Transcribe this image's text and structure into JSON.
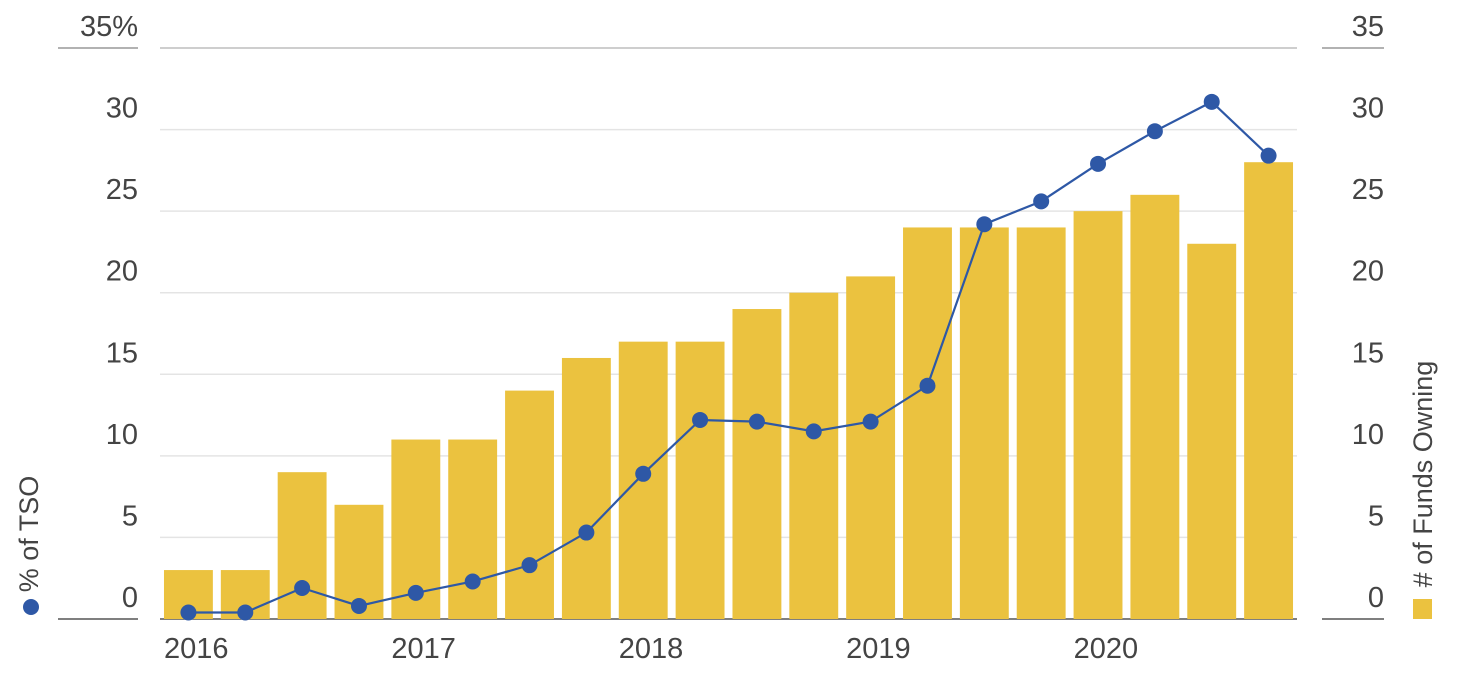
{
  "chart_data": {
    "type": "bar+line",
    "x_tick_labels": [
      "2016",
      "2017",
      "2018",
      "2019",
      "2020"
    ],
    "left_axis": {
      "title": "% of TSO",
      "tick_labels": [
        "0",
        "5",
        "10",
        "15",
        "20",
        "25",
        "30",
        "35%"
      ],
      "ticks": [
        0,
        5,
        10,
        15,
        20,
        25,
        30,
        35
      ],
      "ylim": [
        0,
        35
      ]
    },
    "right_axis": {
      "title": "# of Funds Owning",
      "tick_labels": [
        "0",
        "5",
        "10",
        "15",
        "20",
        "25",
        "30",
        "35"
      ],
      "ticks": [
        0,
        5,
        10,
        15,
        20,
        25,
        30,
        35
      ],
      "ylim": [
        0,
        35
      ]
    },
    "grid": "horizontal",
    "series": [
      {
        "name": "# of Funds Owning",
        "type": "bar",
        "axis": "right",
        "color": "#EBC23F",
        "values": [
          3,
          3,
          9,
          7,
          11,
          11,
          14,
          16,
          17,
          17,
          19,
          20,
          21,
          24,
          24,
          24,
          25,
          26,
          23,
          28
        ]
      },
      {
        "name": "% of TSO",
        "type": "line",
        "axis": "left",
        "color": "#2E58A6",
        "values": [
          0.4,
          0.4,
          1.9,
          0.8,
          1.6,
          2.3,
          3.3,
          5.3,
          8.9,
          12.2,
          12.1,
          11.5,
          12.1,
          14.3,
          24.2,
          25.6,
          27.9,
          29.9,
          31.7,
          28.4
        ]
      }
    ]
  }
}
